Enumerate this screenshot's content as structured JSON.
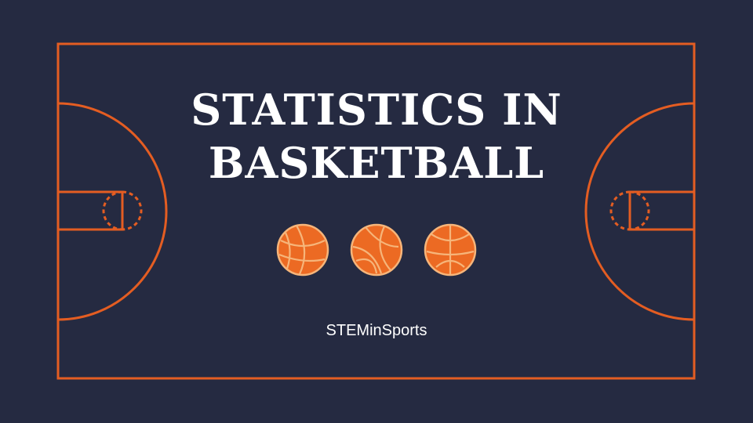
{
  "slide": {
    "title_line1": "STATISTICS IN",
    "title_line2": "BASKETBALL",
    "subtitle": "STEMinSports"
  },
  "decorations": {
    "court_lines": "basketball-court-lines",
    "balls": [
      "basketball-icon",
      "basketball-icon",
      "basketball-icon"
    ]
  },
  "colors": {
    "background": "#252a41",
    "court_line": "#e45d22",
    "ball_fill": "#ec6a23",
    "ball_seam": "#f6b57a",
    "text": "#ffffff"
  }
}
